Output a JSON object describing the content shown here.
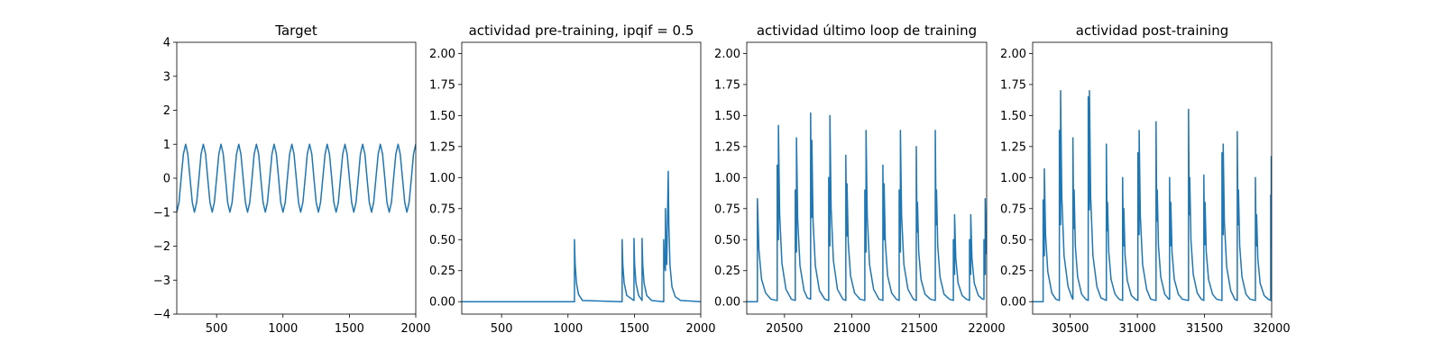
{
  "chart_data": [
    {
      "type": "line",
      "title": "Target",
      "color": "#1f77b4",
      "x": [
        200,
        217,
        233,
        250,
        267,
        283,
        300,
        317,
        333,
        350,
        367,
        383,
        400,
        417,
        433,
        450,
        467,
        483,
        500,
        517,
        533,
        550,
        567,
        583,
        600,
        617,
        633,
        650,
        667,
        683,
        700,
        717,
        733,
        750,
        767,
        783,
        800,
        817,
        833,
        850,
        867,
        883,
        900,
        917,
        933,
        950,
        967,
        983,
        1000,
        1017,
        1033,
        1050,
        1067,
        1083,
        1100,
        1117,
        1133,
        1150,
        1167,
        1183,
        1200,
        1217,
        1233,
        1250,
        1267,
        1283,
        1300,
        1317,
        1333,
        1350,
        1367,
        1383,
        1400,
        1417,
        1433,
        1450,
        1467,
        1483,
        1500,
        1517,
        1533,
        1550,
        1567,
        1583,
        1600,
        1617,
        1633,
        1650,
        1667,
        1683,
        1700,
        1717,
        1733,
        1750,
        1767,
        1783,
        1800,
        1817,
        1833,
        1850,
        1867,
        1883,
        1900,
        1917,
        1933,
        1950,
        1967,
        1983,
        2000
      ],
      "values": [
        -1,
        -0.71,
        0,
        0.71,
        1,
        0.71,
        0,
        -0.71,
        -1,
        -0.71,
        0,
        0.71,
        1,
        0.71,
        0,
        -0.71,
        -1,
        -0.71,
        0,
        0.71,
        1,
        0.71,
        0,
        -0.71,
        -1,
        -0.71,
        0,
        0.71,
        1,
        0.71,
        0,
        -0.71,
        -1,
        -0.71,
        0,
        0.71,
        1,
        0.71,
        0,
        -0.71,
        -1,
        -0.71,
        0,
        0.71,
        1,
        0.71,
        0,
        -0.71,
        -1,
        -0.71,
        0,
        0.71,
        1,
        0.71,
        0,
        -0.71,
        -1,
        -0.71,
        0,
        0.71,
        1,
        0.71,
        0,
        -0.71,
        -1,
        -0.71,
        0,
        0.71,
        1,
        0.71,
        0,
        -0.71,
        -1,
        -0.71,
        0,
        0.71,
        1,
        0.71,
        0,
        -0.71,
        -1,
        -0.71,
        0,
        0.71,
        1,
        0.71,
        0,
        -0.71,
        -1,
        -0.71,
        0,
        0.71,
        1,
        0.71,
        0,
        -0.71,
        -1,
        -0.71,
        0,
        0.71,
        1,
        0.71,
        0,
        -0.71,
        -1,
        -0.71,
        0,
        0.71,
        1
      ],
      "xlim": [
        200,
        2000
      ],
      "xticks": [
        500,
        1000,
        1500,
        2000
      ],
      "ylim": [
        -4,
        4
      ],
      "yticks": [
        {
          "value": -4,
          "label": "−4"
        },
        {
          "value": -3,
          "label": "−3"
        },
        {
          "value": -2,
          "label": "−2"
        },
        {
          "value": -1,
          "label": "−1"
        },
        0,
        1,
        2,
        3,
        4
      ]
    },
    {
      "type": "line",
      "title": "actividad pre-training, ipqif = 0.5",
      "color": "#1f77b4",
      "x": [
        200,
        1049,
        1049,
        1054,
        1064,
        1079,
        1109,
        1408,
        1408,
        1413,
        1423,
        1443,
        1497,
        1497,
        1502,
        1512,
        1532,
        1558,
        1558,
        1563,
        1573,
        1593,
        1630,
        1721,
        1721,
        1726,
        1734,
        1734,
        1739,
        1744,
        1755,
        1760,
        1768,
        1783,
        1808,
        1848,
        2000
      ],
      "values": [
        0,
        0,
        0.5,
        0.3,
        0.15,
        0.06,
        0.01,
        0,
        0.5,
        0.3,
        0.15,
        0.05,
        0.01,
        0.51,
        0.3,
        0.15,
        0.05,
        0.01,
        0.51,
        0.3,
        0.15,
        0.05,
        0.01,
        0,
        0.5,
        0.3,
        0.25,
        0.75,
        0.4,
        0.3,
        1.05,
        0.6,
        0.3,
        0.12,
        0.04,
        0.01,
        0
      ],
      "xlim": [
        200,
        2000
      ],
      "xticks": [
        500,
        1000,
        1500,
        2000
      ],
      "ylim": [
        -0.1,
        2.09
      ],
      "yticks": [
        {
          "value": 0,
          "label": "0.00"
        },
        0.25,
        {
          "value": 0.5,
          "label": "0.50"
        },
        0.75,
        {
          "value": 1,
          "label": "1.00"
        },
        1.25,
        {
          "value": 1.5,
          "label": "1.50"
        },
        1.75,
        {
          "value": 2,
          "label": "2.00"
        }
      ]
    },
    {
      "type": "line",
      "title": "actividad último loop de training",
      "color": "#1f77b4",
      "x": [
        20220,
        20299,
        20299,
        20310,
        20330,
        20360,
        20400,
        20446,
        20446,
        20451,
        20455,
        20455,
        20464,
        20481,
        20511,
        20551,
        20580,
        20580,
        20585,
        20589,
        20589,
        20598,
        20615,
        20645,
        20670,
        20694,
        20694,
        20699,
        20703,
        20703,
        20712,
        20729,
        20759,
        20799,
        20828,
        20828,
        20833,
        20837,
        20837,
        20846,
        20863,
        20893,
        20933,
        20955,
        20955,
        20960,
        20964,
        20964,
        20973,
        20990,
        21020,
        21060,
        21096,
        21096,
        21101,
        21105,
        21105,
        21114,
        21131,
        21161,
        21201,
        21230,
        21230,
        21235,
        21239,
        21239,
        21248,
        21265,
        21295,
        21330,
        21351,
        21351,
        21356,
        21360,
        21360,
        21369,
        21386,
        21416,
        21456,
        21478,
        21478,
        21483,
        21487,
        21487,
        21496,
        21513,
        21543,
        21583,
        21619,
        21619,
        21624,
        21628,
        21628,
        21637,
        21654,
        21684,
        21724,
        21753,
        21753,
        21758,
        21762,
        21762,
        21771,
        21788,
        21818,
        21850,
        21873,
        21873,
        21878,
        21882,
        21882,
        21891,
        21908,
        21938,
        21970,
        21980,
        21980,
        21985,
        21989,
        21989,
        21998,
        22000
      ],
      "values": [
        0,
        0,
        0.83,
        0.42,
        0.18,
        0.07,
        0.02,
        0.01,
        1.1,
        0.55,
        0.5,
        1.42,
        0.71,
        0.31,
        0.1,
        0.02,
        0.01,
        0.9,
        0.45,
        0.4,
        1.32,
        0.66,
        0.29,
        0.09,
        0.03,
        0.02,
        1.52,
        0.76,
        0.68,
        1.3,
        0.65,
        0.29,
        0.09,
        0.02,
        0.01,
        1.0,
        0.5,
        0.45,
        1.5,
        0.75,
        0.33,
        0.1,
        0.02,
        0.01,
        1.18,
        0.59,
        0.53,
        0.95,
        0.48,
        0.21,
        0.07,
        0.02,
        0.01,
        0.9,
        0.45,
        0.4,
        1.38,
        0.69,
        0.3,
        0.1,
        0.02,
        0.01,
        1.1,
        0.55,
        0.5,
        0.95,
        0.48,
        0.21,
        0.07,
        0.02,
        0.01,
        0.9,
        0.45,
        0.4,
        1.38,
        0.69,
        0.3,
        0.1,
        0.02,
        0.01,
        1.25,
        0.63,
        0.56,
        0.8,
        0.4,
        0.18,
        0.06,
        0.02,
        0.01,
        1.38,
        0.69,
        0.62,
        0.9,
        0.45,
        0.2,
        0.06,
        0.02,
        0.01,
        0.5,
        0.25,
        0.22,
        0.7,
        0.35,
        0.15,
        0.05,
        0.02,
        0.01,
        0.5,
        0.25,
        0.22,
        0.7,
        0.35,
        0.15,
        0.05,
        0.02,
        0.02,
        0.5,
        0.25,
        0.22,
        0.83,
        0.42,
        0.38
      ],
      "xlim": [
        20220,
        22000
      ],
      "xticks": [
        20500,
        21000,
        21500,
        22000
      ],
      "ylim": [
        -0.1,
        2.09
      ],
      "yticks": [
        {
          "value": 0,
          "label": "0.00"
        },
        0.25,
        {
          "value": 0.5,
          "label": "0.50"
        },
        0.75,
        {
          "value": 1,
          "label": "1.00"
        },
        1.25,
        {
          "value": 1.5,
          "label": "1.50"
        },
        1.75,
        {
          "value": 2,
          "label": "2.00"
        }
      ]
    },
    {
      "type": "line",
      "title": "actividad post-training",
      "color": "#1f77b4",
      "x": [
        30220,
        30298,
        30298,
        30303,
        30307,
        30307,
        30316,
        30333,
        30363,
        30393,
        30419,
        30419,
        30424,
        30428,
        30428,
        30437,
        30454,
        30484,
        30514,
        30520,
        30520,
        30525,
        30529,
        30529,
        30538,
        30555,
        30585,
        30615,
        30634,
        30634,
        30639,
        30643,
        30643,
        30652,
        30669,
        30699,
        30729,
        30769,
        30769,
        30774,
        30778,
        30778,
        30787,
        30804,
        30834,
        30864,
        30890,
        30890,
        30895,
        30899,
        30899,
        30908,
        30925,
        30955,
        30985,
        31004,
        31004,
        31009,
        31013,
        31013,
        31022,
        31039,
        31069,
        31099,
        31139,
        31139,
        31144,
        31148,
        31148,
        31157,
        31174,
        31204,
        31234,
        31240,
        31240,
        31245,
        31249,
        31249,
        31258,
        31275,
        31305,
        31335,
        31381,
        31381,
        31386,
        31390,
        31390,
        31399,
        31416,
        31446,
        31476,
        31495,
        31495,
        31500,
        31504,
        31504,
        31513,
        31530,
        31560,
        31590,
        31630,
        31630,
        31635,
        31639,
        31639,
        31648,
        31665,
        31695,
        31725,
        31744,
        31744,
        31749,
        31753,
        31753,
        31762,
        31779,
        31809,
        31839,
        31879,
        31879,
        31884,
        31888,
        31888,
        31897,
        31914,
        31944,
        31974,
        31993,
        31993,
        31997,
        31997,
        32000
      ],
      "values": [
        0,
        0,
        0.82,
        0.41,
        0.37,
        1.07,
        0.54,
        0.24,
        0.07,
        0.02,
        0.01,
        1.38,
        0.69,
        0.62,
        1.7,
        0.85,
        0.37,
        0.12,
        0.03,
        0.02,
        1.32,
        0.66,
        0.59,
        0.9,
        0.45,
        0.2,
        0.06,
        0.02,
        0.01,
        1.65,
        0.83,
        0.74,
        1.7,
        0.85,
        0.37,
        0.12,
        0.03,
        0.01,
        1.27,
        0.64,
        0.57,
        0.8,
        0.4,
        0.18,
        0.06,
        0.02,
        0.01,
        1.0,
        0.5,
        0.45,
        0.75,
        0.38,
        0.17,
        0.05,
        0.02,
        0.01,
        1.2,
        0.6,
        0.54,
        1.38,
        0.69,
        0.3,
        0.1,
        0.02,
        0.01,
        1.45,
        0.73,
        0.65,
        0.9,
        0.45,
        0.2,
        0.06,
        0.02,
        0.02,
        1.0,
        0.5,
        0.45,
        0.8,
        0.4,
        0.18,
        0.06,
        0.02,
        0.01,
        1.55,
        0.78,
        0.7,
        1.0,
        0.5,
        0.22,
        0.07,
        0.02,
        0.01,
        1.02,
        0.51,
        0.46,
        0.8,
        0.4,
        0.18,
        0.06,
        0.02,
        0.01,
        1.2,
        0.6,
        0.54,
        1.27,
        0.64,
        0.28,
        0.09,
        0.02,
        0.01,
        1.37,
        0.69,
        0.62,
        0.9,
        0.45,
        0.2,
        0.06,
        0.02,
        0.01,
        1.0,
        0.5,
        0.45,
        0.7,
        0.35,
        0.15,
        0.05,
        0.02,
        0.01,
        0.86,
        0.43,
        1.17,
        0.9
      ],
      "xlim": [
        30220,
        32000
      ],
      "xticks": [
        30500,
        31000,
        31500,
        32000
      ],
      "ylim": [
        -0.1,
        2.09
      ],
      "yticks": [
        {
          "value": 0,
          "label": "0.00"
        },
        0.25,
        {
          "value": 0.5,
          "label": "0.50"
        },
        0.75,
        {
          "value": 1,
          "label": "1.00"
        },
        1.25,
        {
          "value": 1.5,
          "label": "1.50"
        },
        1.75,
        {
          "value": 2,
          "label": "2.00"
        }
      ]
    }
  ]
}
